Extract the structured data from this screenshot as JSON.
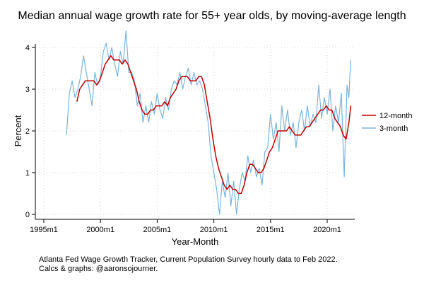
{
  "chart_data": {
    "type": "line",
    "title": "Median annual wage growth rate for 55+ year olds, by moving-average length",
    "xlabel": "Year-Month",
    "ylabel": "Percent",
    "xlim": [
      "1995-01",
      "2022-06"
    ],
    "ylim": [
      0,
      4.3
    ],
    "x_ticks": [
      {
        "date": "1995-01",
        "label": "1995m1"
      },
      {
        "date": "2000-01",
        "label": "2000m1"
      },
      {
        "date": "2005-01",
        "label": "2005m1"
      },
      {
        "date": "2010-01",
        "label": "2010m1"
      },
      {
        "date": "2015-01",
        "label": "2015m1"
      },
      {
        "date": "2020-01",
        "label": "2020m1"
      }
    ],
    "y_ticks": [
      0,
      1,
      2,
      3,
      4
    ],
    "grid": true,
    "legend_position": "right",
    "colors": {
      "12-month": "#c00000",
      "3-month": "#7ab4dd"
    },
    "series": [
      {
        "name": "12-month",
        "color": "#c00000",
        "points": [
          [
            "1997-12",
            2.7
          ],
          [
            "1998-03",
            3.0
          ],
          [
            "1998-06",
            3.1
          ],
          [
            "1998-09",
            3.2
          ],
          [
            "1998-12",
            3.2
          ],
          [
            "1999-03",
            3.2
          ],
          [
            "1999-06",
            3.2
          ],
          [
            "1999-09",
            3.1
          ],
          [
            "1999-12",
            3.2
          ],
          [
            "2000-03",
            3.4
          ],
          [
            "2000-06",
            3.6
          ],
          [
            "2000-09",
            3.7
          ],
          [
            "2000-12",
            3.8
          ],
          [
            "2001-03",
            3.7
          ],
          [
            "2001-06",
            3.7
          ],
          [
            "2001-09",
            3.7
          ],
          [
            "2001-12",
            3.6
          ],
          [
            "2002-03",
            3.7
          ],
          [
            "2002-06",
            3.6
          ],
          [
            "2002-09",
            3.4
          ],
          [
            "2002-12",
            3.2
          ],
          [
            "2003-03",
            3.0
          ],
          [
            "2003-06",
            2.7
          ],
          [
            "2003-09",
            2.5
          ],
          [
            "2003-12",
            2.4
          ],
          [
            "2004-03",
            2.4
          ],
          [
            "2004-06",
            2.5
          ],
          [
            "2004-09",
            2.5
          ],
          [
            "2004-12",
            2.6
          ],
          [
            "2005-03",
            2.6
          ],
          [
            "2005-06",
            2.6
          ],
          [
            "2005-09",
            2.7
          ],
          [
            "2005-12",
            2.6
          ],
          [
            "2006-03",
            2.8
          ],
          [
            "2006-06",
            2.9
          ],
          [
            "2006-09",
            3.0
          ],
          [
            "2006-12",
            3.2
          ],
          [
            "2007-03",
            3.3
          ],
          [
            "2007-06",
            3.3
          ],
          [
            "2007-09",
            3.3
          ],
          [
            "2007-12",
            3.2
          ],
          [
            "2008-03",
            3.2
          ],
          [
            "2008-06",
            3.2
          ],
          [
            "2008-09",
            3.3
          ],
          [
            "2008-12",
            3.3
          ],
          [
            "2009-03",
            3.1
          ],
          [
            "2009-06",
            2.7
          ],
          [
            "2009-09",
            2.3
          ],
          [
            "2009-12",
            1.8
          ],
          [
            "2010-03",
            1.4
          ],
          [
            "2010-06",
            1.1
          ],
          [
            "2010-09",
            0.9
          ],
          [
            "2010-12",
            0.7
          ],
          [
            "2011-03",
            0.6
          ],
          [
            "2011-06",
            0.7
          ],
          [
            "2011-09",
            0.6
          ],
          [
            "2011-12",
            0.6
          ],
          [
            "2012-03",
            0.5
          ],
          [
            "2012-06",
            0.5
          ],
          [
            "2012-09",
            0.7
          ],
          [
            "2012-12",
            1.0
          ],
          [
            "2013-03",
            1.2
          ],
          [
            "2013-06",
            1.2
          ],
          [
            "2013-09",
            1.1
          ],
          [
            "2013-12",
            1.0
          ],
          [
            "2014-03",
            1.0
          ],
          [
            "2014-06",
            1.1
          ],
          [
            "2014-09",
            1.3
          ],
          [
            "2014-12",
            1.5
          ],
          [
            "2015-03",
            1.6
          ],
          [
            "2015-06",
            1.8
          ],
          [
            "2015-09",
            2.0
          ],
          [
            "2015-12",
            2.0
          ],
          [
            "2016-03",
            2.0
          ],
          [
            "2016-06",
            2.0
          ],
          [
            "2016-09",
            2.1
          ],
          [
            "2016-12",
            2.0
          ],
          [
            "2017-03",
            1.9
          ],
          [
            "2017-06",
            1.9
          ],
          [
            "2017-09",
            1.9
          ],
          [
            "2017-12",
            2.0
          ],
          [
            "2018-03",
            2.1
          ],
          [
            "2018-06",
            2.1
          ],
          [
            "2018-09",
            2.2
          ],
          [
            "2018-12",
            2.3
          ],
          [
            "2019-03",
            2.4
          ],
          [
            "2019-06",
            2.5
          ],
          [
            "2019-09",
            2.5
          ],
          [
            "2019-12",
            2.6
          ],
          [
            "2020-03",
            2.5
          ],
          [
            "2020-06",
            2.5
          ],
          [
            "2020-09",
            2.3
          ],
          [
            "2020-12",
            2.2
          ],
          [
            "2021-03",
            2.1
          ],
          [
            "2021-06",
            1.9
          ],
          [
            "2021-09",
            1.8
          ],
          [
            "2021-12",
            2.2
          ],
          [
            "2022-02",
            2.6
          ]
        ]
      },
      {
        "name": "3-month",
        "color": "#7ab4dd",
        "points": [
          [
            "1997-01",
            1.9
          ],
          [
            "1997-04",
            2.9
          ],
          [
            "1997-07",
            3.2
          ],
          [
            "1997-10",
            2.8
          ],
          [
            "1998-01",
            3.0
          ],
          [
            "1998-04",
            3.3
          ],
          [
            "1998-07",
            3.8
          ],
          [
            "1998-10",
            3.4
          ],
          [
            "1999-01",
            3.0
          ],
          [
            "1999-04",
            2.6
          ],
          [
            "1999-07",
            3.4
          ],
          [
            "1999-10",
            3.1
          ],
          [
            "2000-01",
            3.3
          ],
          [
            "2000-04",
            3.9
          ],
          [
            "2000-07",
            4.1
          ],
          [
            "2000-10",
            3.7
          ],
          [
            "2001-01",
            4.0
          ],
          [
            "2001-04",
            3.6
          ],
          [
            "2001-07",
            3.3
          ],
          [
            "2001-10",
            3.9
          ],
          [
            "2002-01",
            3.6
          ],
          [
            "2002-04",
            4.4
          ],
          [
            "2002-07",
            3.4
          ],
          [
            "2002-10",
            3.4
          ],
          [
            "2003-01",
            3.2
          ],
          [
            "2003-04",
            2.6
          ],
          [
            "2003-07",
            2.9
          ],
          [
            "2003-10",
            2.2
          ],
          [
            "2004-01",
            2.6
          ],
          [
            "2004-04",
            2.2
          ],
          [
            "2004-07",
            2.7
          ],
          [
            "2004-10",
            2.4
          ],
          [
            "2005-01",
            2.9
          ],
          [
            "2005-04",
            2.5
          ],
          [
            "2005-07",
            2.3
          ],
          [
            "2005-10",
            2.8
          ],
          [
            "2006-01",
            2.5
          ],
          [
            "2006-04",
            3.0
          ],
          [
            "2006-07",
            3.2
          ],
          [
            "2006-10",
            3.1
          ],
          [
            "2007-01",
            3.4
          ],
          [
            "2007-04",
            3.0
          ],
          [
            "2007-07",
            3.3
          ],
          [
            "2007-10",
            3.5
          ],
          [
            "2008-01",
            3.1
          ],
          [
            "2008-04",
            3.4
          ],
          [
            "2008-07",
            3.1
          ],
          [
            "2008-10",
            3.2
          ],
          [
            "2009-01",
            3.0
          ],
          [
            "2009-04",
            2.6
          ],
          [
            "2009-07",
            2.2
          ],
          [
            "2009-10",
            1.4
          ],
          [
            "2010-01",
            1.0
          ],
          [
            "2010-04",
            0.6
          ],
          [
            "2010-07",
            0.0
          ],
          [
            "2010-10",
            0.8
          ],
          [
            "2011-01",
            0.4
          ],
          [
            "2011-04",
            1.0
          ],
          [
            "2011-07",
            0.2
          ],
          [
            "2011-10",
            0.8
          ],
          [
            "2012-01",
            0.0
          ],
          [
            "2012-04",
            0.6
          ],
          [
            "2012-07",
            1.0
          ],
          [
            "2012-10",
            0.8
          ],
          [
            "2013-01",
            1.4
          ],
          [
            "2013-04",
            1.0
          ],
          [
            "2013-07",
            1.3
          ],
          [
            "2013-10",
            0.9
          ],
          [
            "2014-01",
            1.1
          ],
          [
            "2014-04",
            0.7
          ],
          [
            "2014-07",
            1.5
          ],
          [
            "2014-10",
            1.6
          ],
          [
            "2015-01",
            2.4
          ],
          [
            "2015-04",
            1.8
          ],
          [
            "2015-07",
            2.2
          ],
          [
            "2015-10",
            1.5
          ],
          [
            "2016-01",
            2.6
          ],
          [
            "2016-04",
            2.0
          ],
          [
            "2016-07",
            2.5
          ],
          [
            "2016-10",
            1.9
          ],
          [
            "2017-01",
            2.2
          ],
          [
            "2017-04",
            1.6
          ],
          [
            "2017-07",
            2.2
          ],
          [
            "2017-10",
            2.5
          ],
          [
            "2018-01",
            2.0
          ],
          [
            "2018-04",
            2.6
          ],
          [
            "2018-07",
            2.1
          ],
          [
            "2018-10",
            2.4
          ],
          [
            "2019-01",
            2.2
          ],
          [
            "2019-04",
            3.1
          ],
          [
            "2019-07",
            2.3
          ],
          [
            "2019-10",
            2.8
          ],
          [
            "2020-01",
            2.4
          ],
          [
            "2020-04",
            3.0
          ],
          [
            "2020-07",
            2.0
          ],
          [
            "2020-10",
            2.6
          ],
          [
            "2021-01",
            2.2
          ],
          [
            "2021-04",
            2.9
          ],
          [
            "2021-07",
            0.9
          ],
          [
            "2021-10",
            3.1
          ],
          [
            "2021-12",
            2.8
          ],
          [
            "2022-01",
            3.3
          ],
          [
            "2022-02",
            3.7
          ]
        ]
      }
    ],
    "note_lines": [
      "Atlanta Fed Wage Growth Tracker, Current Population Survey hourly data to Feb 2022.",
      "Calcs & graphs: @aaronsojourner."
    ]
  }
}
